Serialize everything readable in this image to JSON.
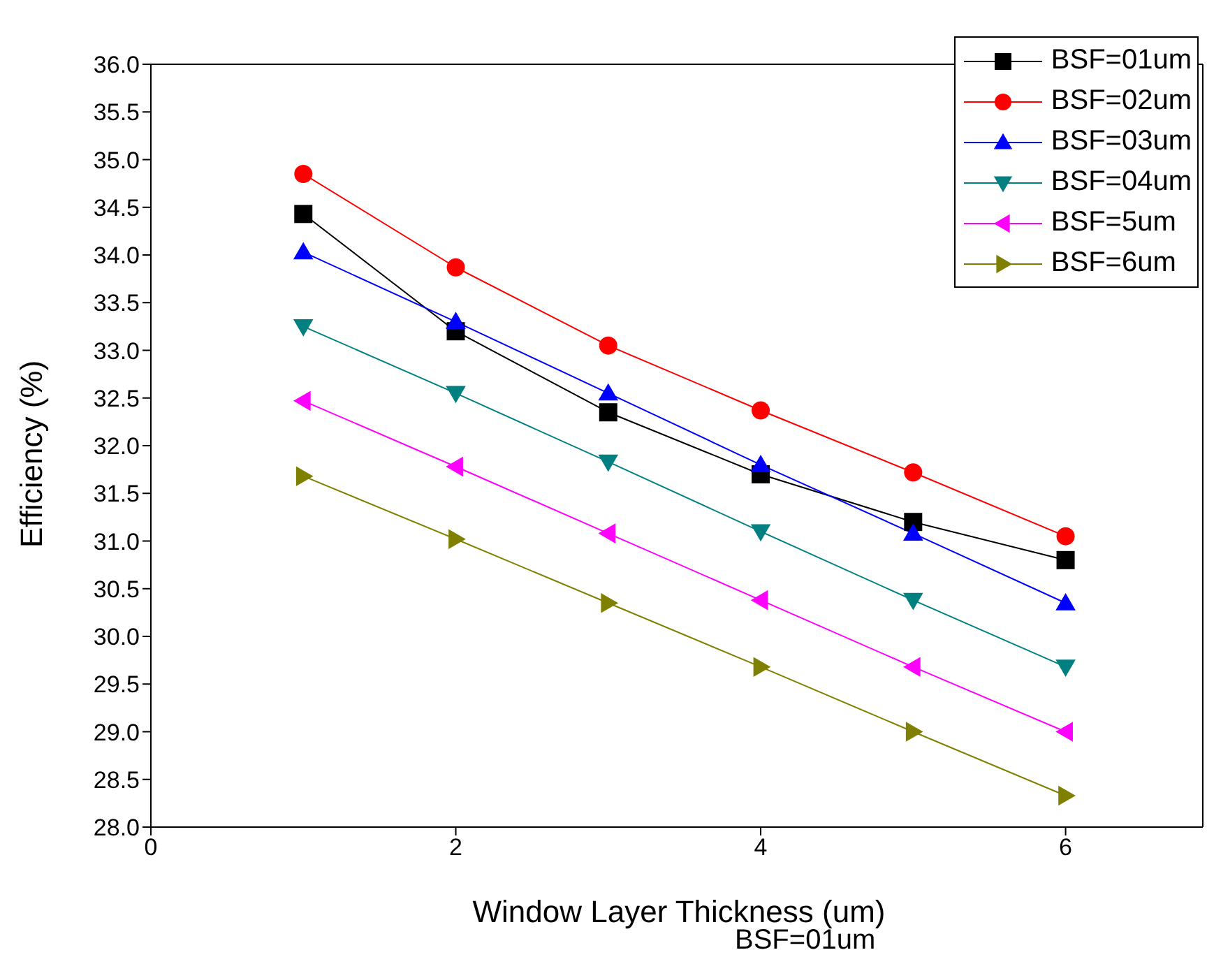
{
  "chart_data": {
    "type": "line",
    "xlabel": "Window Layer Thickness (um)",
    "ylabel": "Efficiency (%)",
    "annotations": [
      "BSF=01um"
    ],
    "x": [
      1,
      2,
      3,
      4,
      5,
      6
    ],
    "xlim": [
      0,
      6.9
    ],
    "xticks": [
      0,
      2,
      4,
      6
    ],
    "ylim": [
      28,
      36
    ],
    "yticks": [
      {
        "value": 28,
        "label": "28.0"
      },
      28.5,
      {
        "value": 29,
        "label": "29.0"
      },
      29.5,
      {
        "value": 30,
        "label": "30.0"
      },
      30.5,
      {
        "value": 31,
        "label": "31.0"
      },
      31.5,
      {
        "value": 32,
        "label": "32.0"
      },
      32.5,
      {
        "value": 33,
        "label": "33.0"
      },
      33.5,
      {
        "value": 34,
        "label": "34.0"
      },
      34.5,
      {
        "value": 35,
        "label": "35.0"
      },
      35.5,
      {
        "value": 36,
        "label": "36.0"
      }
    ],
    "grid": false,
    "legend": "top right",
    "line_style": "solid",
    "series": [
      {
        "name": "BSF=01um",
        "color": "#000000",
        "marker": "square",
        "values": [
          34.43,
          33.2,
          32.35,
          31.7,
          31.2,
          30.8
        ]
      },
      {
        "name": "BSF=02um",
        "color": "#ff0000",
        "marker": "circle",
        "values": [
          34.85,
          33.87,
          33.05,
          32.37,
          31.72,
          31.05
        ]
      },
      {
        "name": "BSF=03um",
        "color": "#0000ff",
        "marker": "triangle",
        "values": [
          34.03,
          33.3,
          32.55,
          31.8,
          31.08,
          30.35
        ]
      },
      {
        "name": "BSF=04um",
        "color": "#008080",
        "marker": "triangle-down",
        "values": [
          33.25,
          32.55,
          31.83,
          31.1,
          30.38,
          29.68
        ]
      },
      {
        "name": "BSF=5um",
        "color": "#ff00ff",
        "marker": "triangle-left",
        "values": [
          32.47,
          31.78,
          31.08,
          30.38,
          29.68,
          29.0
        ]
      },
      {
        "name": "BSF=6um",
        "color": "#808000",
        "marker": "triangle-right",
        "values": [
          31.68,
          31.02,
          30.35,
          29.68,
          29.0,
          28.33
        ]
      }
    ]
  }
}
